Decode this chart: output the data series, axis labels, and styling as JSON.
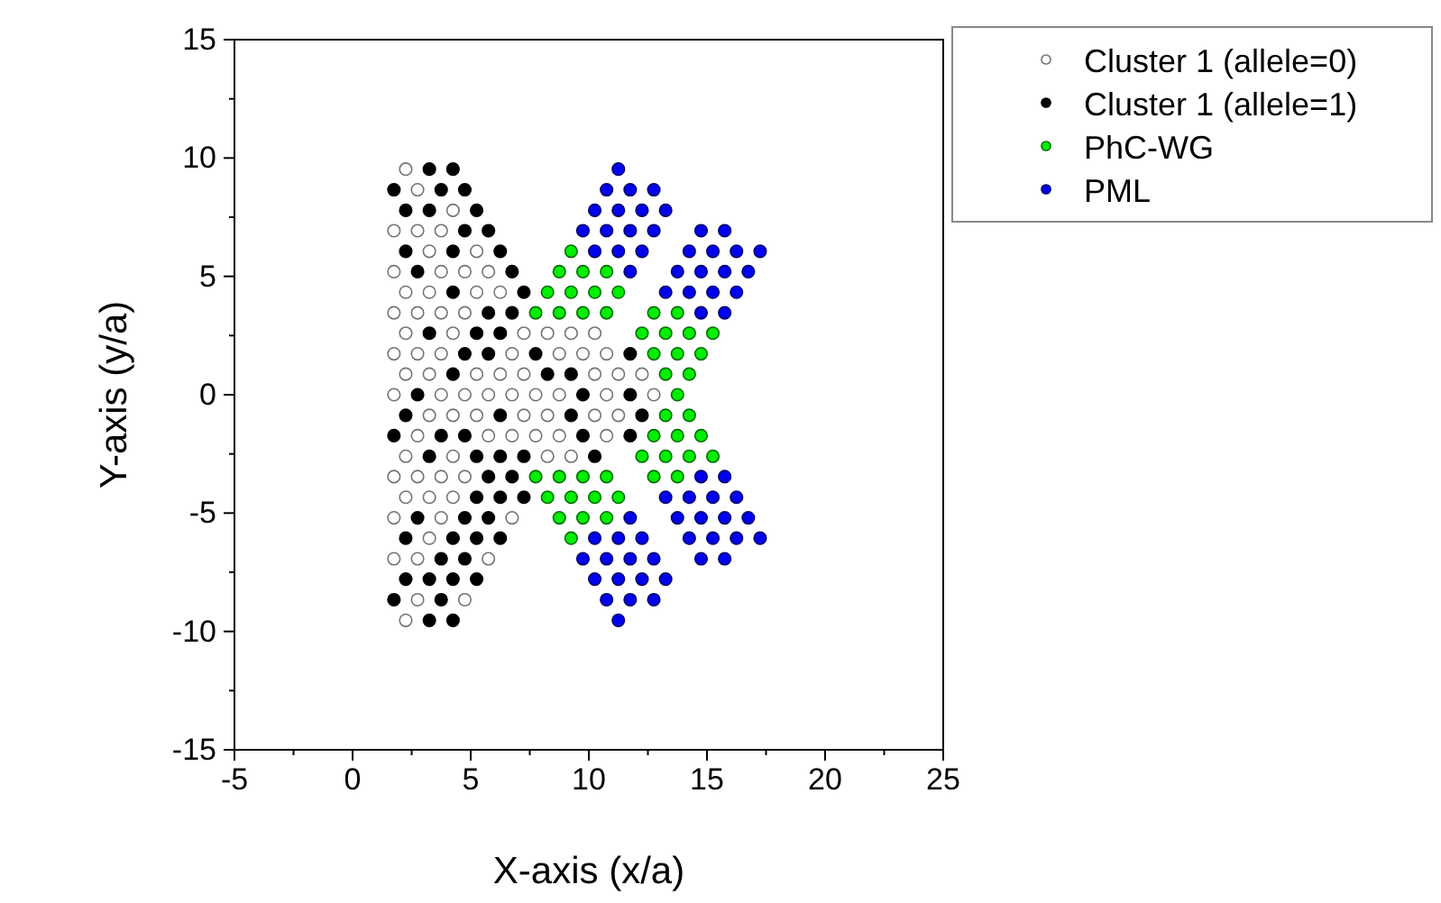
{
  "chart_data": {
    "type": "scatter",
    "xlabel": "X-axis (x/a)",
    "ylabel": "Y-axis (y/a)",
    "xlim": [
      -5,
      25
    ],
    "ylim": [
      -15,
      15
    ],
    "xticks": [
      -5,
      0,
      5,
      10,
      15,
      20,
      25
    ],
    "yticks": [
      -15,
      -10,
      -5,
      0,
      5,
      10,
      15
    ],
    "grid": false,
    "legend": "right",
    "marker": "circle",
    "series": [
      {
        "name": "Cluster 1 (allele=0)",
        "color": "#ffffff",
        "x": [
          2.25,
          2.75,
          4.25,
          1.75,
          2.75,
          3.75,
          3.25,
          5.25,
          1.75,
          3.75,
          4.75,
          5.75,
          2.25,
          3.25,
          5.25,
          6.25,
          1.75,
          2.75,
          3.75,
          4.75,
          2.25,
          4.25,
          7.25,
          8.25,
          9.25,
          10.25,
          1.75,
          2.75,
          3.75,
          6.75,
          8.75,
          9.75,
          10.75,
          2.25,
          3.25,
          5.25,
          6.25,
          7.25,
          10.25,
          11.25,
          12.25,
          1.75,
          3.75,
          4.75,
          5.75,
          6.75,
          7.75,
          8.75,
          10.75,
          12.75,
          3.25,
          4.25,
          5.25,
          7.25,
          8.25,
          10.25,
          11.25,
          2.75,
          5.75,
          6.75,
          7.75,
          8.75,
          10.75,
          2.25,
          4.25,
          8.25,
          9.25,
          1.75,
          2.75,
          3.75,
          4.75,
          2.25,
          3.25,
          4.25,
          1.75,
          3.75,
          6.75,
          3.25,
          1.75,
          2.75,
          5.75,
          2.75,
          4.75,
          2.25
        ],
        "values": [
          9.53,
          8.66,
          7.79,
          6.93,
          6.93,
          6.93,
          6.06,
          6.06,
          5.2,
          5.2,
          5.2,
          5.2,
          4.33,
          4.33,
          4.33,
          4.33,
          3.46,
          3.46,
          3.46,
          3.46,
          2.6,
          2.6,
          2.6,
          2.6,
          2.6,
          2.6,
          1.73,
          1.73,
          1.73,
          1.73,
          1.73,
          1.73,
          1.73,
          0.87,
          0.87,
          0.87,
          0.87,
          0.87,
          0.87,
          0.87,
          0.87,
          0,
          0,
          0,
          0,
          0,
          0,
          0,
          0,
          0,
          -0.87,
          -0.87,
          -0.87,
          -0.87,
          -0.87,
          -0.87,
          -0.87,
          -1.73,
          -1.73,
          -1.73,
          -1.73,
          -1.73,
          -1.73,
          -2.6,
          -2.6,
          -2.6,
          -2.6,
          -3.46,
          -3.46,
          -3.46,
          -3.46,
          -4.33,
          -4.33,
          -4.33,
          -5.2,
          -5.2,
          -5.2,
          -6.06,
          -6.93,
          -6.93,
          -6.93,
          -8.66,
          -8.66,
          -9.53
        ]
      },
      {
        "name": "Cluster 1 (allele=1)",
        "color": "#000000",
        "x": [
          3.25,
          4.25,
          1.75,
          3.75,
          4.75,
          2.25,
          3.25,
          5.25,
          4.75,
          5.75,
          2.25,
          4.25,
          6.25,
          2.75,
          6.75,
          4.25,
          7.25,
          5.75,
          6.75,
          3.25,
          5.25,
          6.25,
          4.75,
          5.75,
          7.75,
          11.75,
          4.25,
          8.25,
          9.25,
          2.75,
          9.75,
          11.75,
          2.25,
          6.25,
          9.25,
          12.25,
          1.75,
          3.75,
          4.75,
          9.75,
          11.75,
          3.25,
          5.25,
          6.25,
          7.25,
          10.25,
          5.75,
          6.75,
          5.25,
          6.25,
          7.25,
          2.75,
          4.75,
          5.75,
          2.25,
          4.25,
          5.25,
          6.25,
          3.75,
          4.75,
          2.25,
          3.25,
          4.25,
          5.25,
          1.75,
          3.75,
          3.25,
          4.25
        ],
        "values": [
          9.53,
          9.53,
          8.66,
          8.66,
          8.66,
          7.79,
          7.79,
          7.79,
          6.93,
          6.93,
          6.06,
          6.06,
          6.06,
          5.2,
          5.2,
          4.33,
          4.33,
          3.46,
          3.46,
          2.6,
          2.6,
          2.6,
          1.73,
          1.73,
          1.73,
          1.73,
          0.87,
          0.87,
          0.87,
          0,
          0,
          0,
          -0.87,
          -0.87,
          -0.87,
          -0.87,
          -1.73,
          -1.73,
          -1.73,
          -1.73,
          -1.73,
          -2.6,
          -2.6,
          -2.6,
          -2.6,
          -2.6,
          -3.46,
          -3.46,
          -4.33,
          -4.33,
          -4.33,
          -5.2,
          -5.2,
          -5.2,
          -6.06,
          -6.06,
          -6.06,
          -6.06,
          -6.93,
          -6.93,
          -7.79,
          -7.79,
          -7.79,
          -7.79,
          -8.66,
          -8.66,
          -9.53,
          -9.53
        ]
      },
      {
        "name": "PhC-WG",
        "color": "#00ee00",
        "x": [
          9.25,
          8.75,
          9.75,
          10.75,
          8.25,
          9.25,
          10.25,
          11.25,
          7.75,
          8.75,
          9.75,
          10.75,
          12.75,
          13.75,
          12.25,
          13.25,
          14.25,
          15.25,
          12.75,
          13.75,
          14.75,
          13.25,
          14.25,
          13.75,
          13.25,
          14.25,
          12.75,
          13.75,
          14.75,
          12.25,
          13.25,
          14.25,
          15.25,
          7.75,
          8.75,
          9.75,
          10.75,
          12.75,
          13.75,
          8.25,
          9.25,
          10.25,
          11.25,
          8.75,
          9.75,
          10.75,
          9.25
        ],
        "values": [
          6.06,
          5.2,
          5.2,
          5.2,
          4.33,
          4.33,
          4.33,
          4.33,
          3.46,
          3.46,
          3.46,
          3.46,
          3.46,
          3.46,
          2.6,
          2.6,
          2.6,
          2.6,
          1.73,
          1.73,
          1.73,
          0.87,
          0.87,
          0,
          -0.87,
          -0.87,
          -1.73,
          -1.73,
          -1.73,
          -2.6,
          -2.6,
          -2.6,
          -2.6,
          -3.46,
          -3.46,
          -3.46,
          -3.46,
          -3.46,
          -3.46,
          -4.33,
          -4.33,
          -4.33,
          -4.33,
          -5.2,
          -5.2,
          -5.2,
          -6.06
        ]
      },
      {
        "name": "PML",
        "color": "#0000ee",
        "x": [
          11.25,
          10.75,
          11.75,
          12.75,
          10.25,
          11.25,
          12.25,
          13.25,
          9.75,
          10.75,
          11.75,
          12.75,
          14.75,
          15.75,
          10.25,
          11.25,
          12.25,
          14.25,
          15.25,
          16.25,
          17.25,
          11.75,
          13.75,
          14.75,
          15.75,
          16.75,
          13.25,
          14.25,
          15.25,
          16.25,
          14.75,
          15.75,
          14.75,
          15.75,
          13.25,
          14.25,
          15.25,
          16.25,
          11.75,
          13.75,
          14.75,
          15.75,
          16.75,
          10.25,
          11.25,
          12.25,
          14.25,
          15.25,
          16.25,
          17.25,
          9.75,
          10.75,
          11.75,
          12.75,
          14.75,
          15.75,
          10.25,
          11.25,
          12.25,
          13.25,
          10.75,
          11.75,
          12.75,
          11.25
        ],
        "values": [
          9.53,
          8.66,
          8.66,
          8.66,
          7.79,
          7.79,
          7.79,
          7.79,
          6.93,
          6.93,
          6.93,
          6.93,
          6.93,
          6.93,
          6.06,
          6.06,
          6.06,
          6.06,
          6.06,
          6.06,
          6.06,
          5.2,
          5.2,
          5.2,
          5.2,
          5.2,
          4.33,
          4.33,
          4.33,
          4.33,
          3.46,
          3.46,
          -3.46,
          -3.46,
          -4.33,
          -4.33,
          -4.33,
          -4.33,
          -5.2,
          -5.2,
          -5.2,
          -5.2,
          -5.2,
          -6.06,
          -6.06,
          -6.06,
          -6.06,
          -6.06,
          -6.06,
          -6.06,
          -6.93,
          -6.93,
          -6.93,
          -6.93,
          -6.93,
          -6.93,
          -7.79,
          -7.79,
          -7.79,
          -7.79,
          -8.66,
          -8.66,
          -8.66,
          -9.53
        ]
      }
    ]
  }
}
